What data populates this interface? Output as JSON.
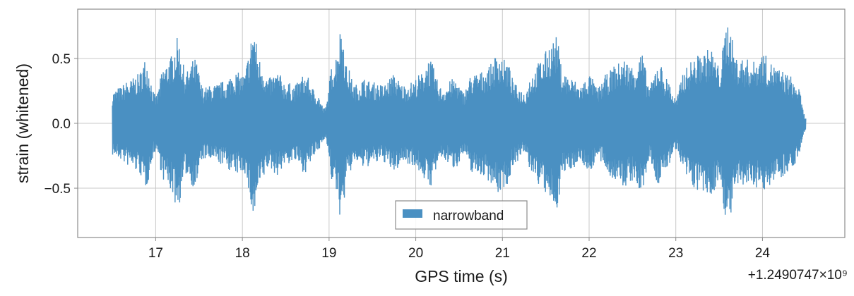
{
  "chart_data": {
    "type": "area",
    "xlabel": "GPS time (s)",
    "ylabel": "strain (whitened)",
    "x_offset_label": "+1.2490747×10⁹",
    "xlim": [
      16.1,
      24.95
    ],
    "ylim": [
      -0.88,
      0.88
    ],
    "xticks": [
      17,
      18,
      19,
      20,
      21,
      22,
      23,
      24
    ],
    "yticks": [
      -0.5,
      0.0,
      0.5
    ],
    "ytick_labels": [
      "−0.5",
      "0.0",
      "0.5"
    ],
    "grid": true,
    "legend_position": "lower-center",
    "color": "#4a90c2",
    "series": [
      {
        "name": "narrowband",
        "x_range": [
          16.5,
          24.5
        ],
        "envelope_x": [
          16.5,
          16.58,
          16.68,
          16.8,
          16.88,
          17.0,
          17.1,
          17.17,
          17.25,
          17.35,
          17.45,
          17.55,
          17.68,
          17.8,
          17.9,
          18.02,
          18.08,
          18.12,
          18.2,
          18.3,
          18.4,
          18.5,
          18.6,
          18.72,
          18.85,
          18.95,
          19.05,
          19.15,
          19.2,
          19.3,
          19.4,
          19.5,
          19.62,
          19.75,
          19.85,
          19.95,
          20.05,
          20.15,
          20.3,
          20.45,
          20.55,
          20.65,
          20.75,
          20.85,
          20.95,
          21.05,
          21.15,
          21.25,
          21.35,
          21.45,
          21.55,
          21.62,
          21.7,
          21.8,
          21.9,
          22.0,
          22.1,
          22.2,
          22.3,
          22.4,
          22.5,
          22.6,
          22.7,
          22.8,
          22.9,
          23.0,
          23.1,
          23.2,
          23.3,
          23.4,
          23.5,
          23.6,
          23.7,
          23.8,
          23.9,
          24.0,
          24.1,
          24.2,
          24.3,
          24.4,
          24.5
        ],
        "envelope_y": [
          0.25,
          0.28,
          0.33,
          0.38,
          0.5,
          0.22,
          0.45,
          0.52,
          0.66,
          0.4,
          0.5,
          0.28,
          0.3,
          0.33,
          0.4,
          0.38,
          0.55,
          0.76,
          0.5,
          0.35,
          0.4,
          0.32,
          0.3,
          0.38,
          0.25,
          0.12,
          0.48,
          0.76,
          0.45,
          0.3,
          0.35,
          0.32,
          0.3,
          0.38,
          0.3,
          0.32,
          0.38,
          0.5,
          0.28,
          0.35,
          0.25,
          0.38,
          0.4,
          0.45,
          0.55,
          0.48,
          0.3,
          0.25,
          0.4,
          0.5,
          0.62,
          0.67,
          0.4,
          0.35,
          0.3,
          0.38,
          0.28,
          0.38,
          0.45,
          0.5,
          0.45,
          0.55,
          0.3,
          0.48,
          0.35,
          0.2,
          0.42,
          0.5,
          0.55,
          0.58,
          0.45,
          0.8,
          0.52,
          0.5,
          0.48,
          0.55,
          0.47,
          0.42,
          0.38,
          0.3,
          0.05
        ]
      }
    ]
  }
}
